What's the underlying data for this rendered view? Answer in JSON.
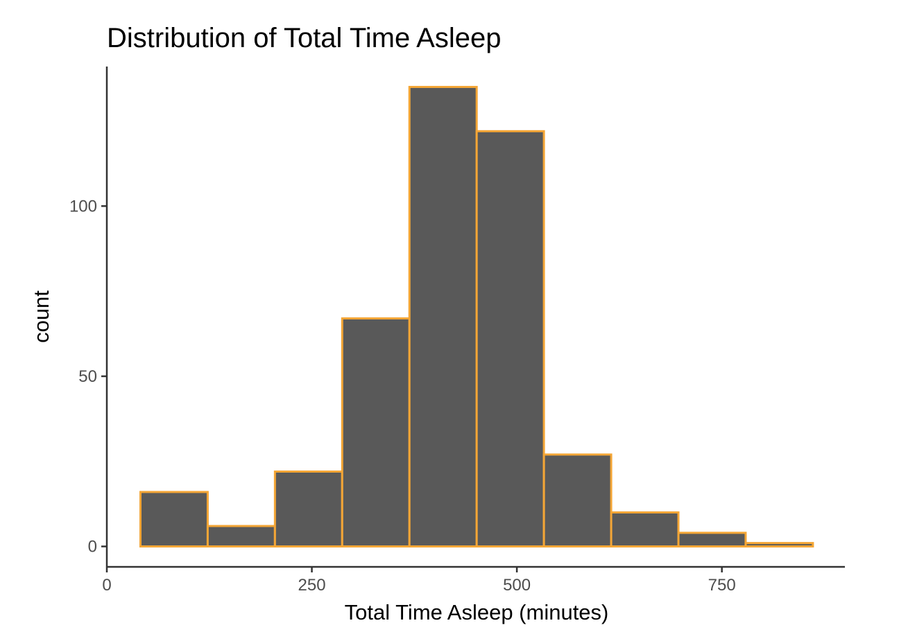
{
  "chart_data": {
    "type": "bar",
    "title": "Distribution of Total Time Asleep",
    "xlabel": "Total Time Asleep (minutes)",
    "ylabel": "count",
    "xlim": [
      0,
      900
    ],
    "ylim": [
      -6,
      141
    ],
    "x_ticks": [
      {
        "value": 0,
        "label": "0"
      },
      {
        "value": 250,
        "label": "250"
      },
      {
        "value": 500,
        "label": "500"
      },
      {
        "value": 750,
        "label": "750"
      }
    ],
    "y_ticks": [
      {
        "value": 0,
        "label": "0"
      },
      {
        "value": 50,
        "label": "50"
      },
      {
        "value": 100,
        "label": "100"
      }
    ],
    "bins": [
      {
        "x0": 41,
        "x1": 123,
        "count": 16
      },
      {
        "x0": 123,
        "x1": 205,
        "count": 6
      },
      {
        "x0": 205,
        "x1": 287,
        "count": 22
      },
      {
        "x0": 287,
        "x1": 369,
        "count": 67
      },
      {
        "x0": 369,
        "x1": 451,
        "count": 135
      },
      {
        "x0": 451,
        "x1": 533,
        "count": 122
      },
      {
        "x0": 533,
        "x1": 615,
        "count": 27
      },
      {
        "x0": 615,
        "x1": 697,
        "count": 10
      },
      {
        "x0": 697,
        "x1": 779,
        "count": 4
      },
      {
        "x0": 779,
        "x1": 861,
        "count": 1
      }
    ],
    "grid": false,
    "legend": "none",
    "colors": {
      "bar_fill": "#595959",
      "bar_outline": "#f4a636",
      "axis": "#333333",
      "tick_text": "#4d4d4d"
    }
  }
}
